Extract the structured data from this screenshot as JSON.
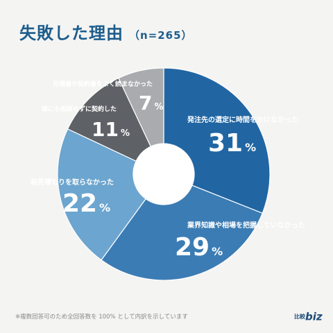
{
  "title": "失敗した理由",
  "subtitle": "（n=265）",
  "footnote": "※複数回答可のため全回答数を 100% として内訳を示しています",
  "logo": {
    "part1": "比較",
    "part2": "biz"
  },
  "chart_data": {
    "type": "pie",
    "style": "donut",
    "slices": [
      {
        "label": "発注先の選定に時間をかけなかった",
        "value": 31,
        "display": "31",
        "color": "#2166a3"
      },
      {
        "label": "業界知識や相場を把握していなかった",
        "value": 29,
        "display": "29",
        "color": "#3b7cb4"
      },
      {
        "label": "相見積もりを取らなかった",
        "value": 22,
        "display": "22",
        "color": "#6ca5cf"
      },
      {
        "label": "誰にも相談せずに契約した",
        "value": 11,
        "display": "11",
        "color": "#5e6166"
      },
      {
        "label": "見積書や契約書をよく読まなかった",
        "value": 7,
        "display": "7",
        "color": "#a9abae"
      }
    ],
    "unit": "%"
  }
}
